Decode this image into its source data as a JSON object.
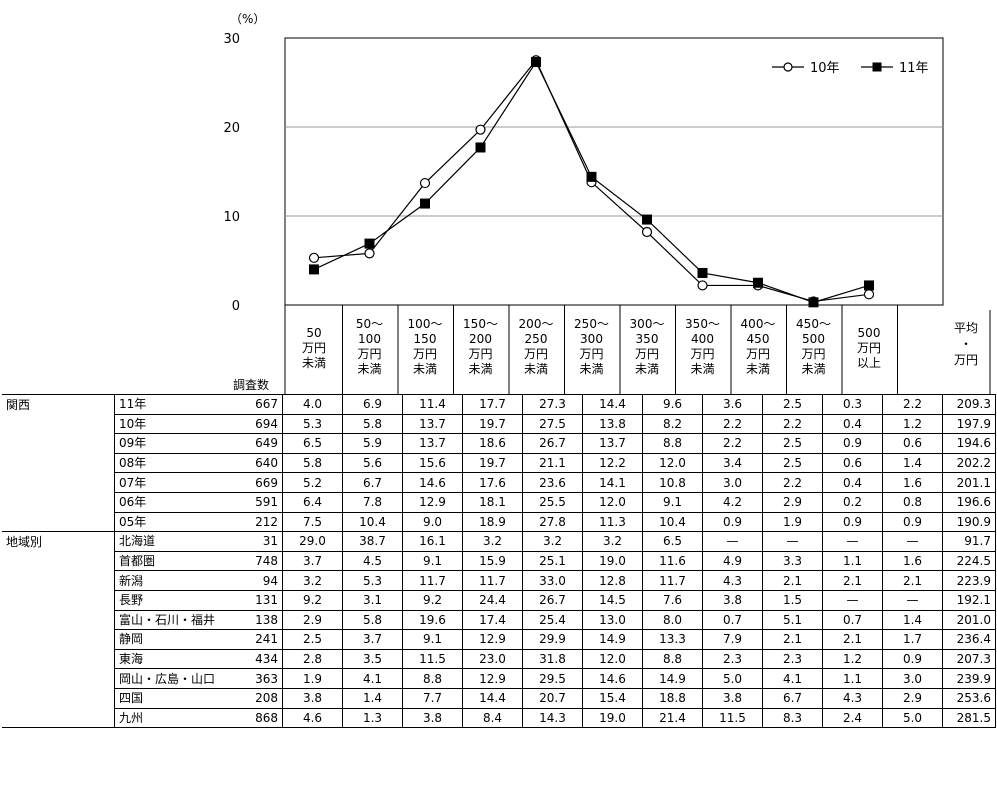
{
  "chart_data": {
    "type": "line",
    "ylabel": "（%）",
    "ylim": [
      0,
      30
    ],
    "yticks": [
      "0",
      "10",
      "20",
      "30"
    ],
    "grid": true,
    "legend_position": "top-right",
    "categories": [
      [
        "50",
        "万円",
        "未満"
      ],
      [
        "50～",
        "100",
        "万円",
        "未満"
      ],
      [
        "100～",
        "150",
        "万円",
        "未満"
      ],
      [
        "150～",
        "200",
        "万円",
        "未満"
      ],
      [
        "200～",
        "250",
        "万円",
        "未満"
      ],
      [
        "250～",
        "300",
        "万円",
        "未満"
      ],
      [
        "300～",
        "350",
        "万円",
        "未満"
      ],
      [
        "350～",
        "400",
        "万円",
        "未満"
      ],
      [
        "400～",
        "450",
        "万円",
        "未満"
      ],
      [
        "450～",
        "500",
        "万円",
        "未満"
      ],
      [
        "500",
        "万円",
        "以上"
      ]
    ],
    "series": [
      {
        "name": "10年",
        "marker": "circle-open",
        "values": [
          5.3,
          5.8,
          13.7,
          19.7,
          27.5,
          13.8,
          8.2,
          2.2,
          2.2,
          0.4,
          1.2
        ]
      },
      {
        "name": "11年",
        "marker": "square-filled",
        "values": [
          4.0,
          6.9,
          11.4,
          17.7,
          27.3,
          14.4,
          9.6,
          3.6,
          2.5,
          0.3,
          2.2
        ]
      }
    ]
  },
  "table": {
    "count_header": "調査数",
    "avg_header": [
      "平均",
      "・",
      "万円"
    ],
    "groups": [
      {
        "name": "関西",
        "rows": [
          {
            "label": "11年",
            "count": "667",
            "values": [
              "4.0",
              "6.9",
              "11.4",
              "17.7",
              "27.3",
              "14.4",
              "9.6",
              "3.6",
              "2.5",
              "0.3",
              "2.2"
            ],
            "avg": "209.3"
          },
          {
            "label": "10年",
            "count": "694",
            "values": [
              "5.3",
              "5.8",
              "13.7",
              "19.7",
              "27.5",
              "13.8",
              "8.2",
              "2.2",
              "2.2",
              "0.4",
              "1.2"
            ],
            "avg": "197.9"
          },
          {
            "label": "09年",
            "count": "649",
            "values": [
              "6.5",
              "5.9",
              "13.7",
              "18.6",
              "26.7",
              "13.7",
              "8.8",
              "2.2",
              "2.5",
              "0.9",
              "0.6"
            ],
            "avg": "194.6"
          },
          {
            "label": "08年",
            "count": "640",
            "values": [
              "5.8",
              "5.6",
              "15.6",
              "19.7",
              "21.1",
              "12.2",
              "12.0",
              "3.4",
              "2.5",
              "0.6",
              "1.4"
            ],
            "avg": "202.2"
          },
          {
            "label": "07年",
            "count": "669",
            "values": [
              "5.2",
              "6.7",
              "14.6",
              "17.6",
              "23.6",
              "14.1",
              "10.8",
              "3.0",
              "2.2",
              "0.4",
              "1.6"
            ],
            "avg": "201.1"
          },
          {
            "label": "06年",
            "count": "591",
            "values": [
              "6.4",
              "7.8",
              "12.9",
              "18.1",
              "25.5",
              "12.0",
              "9.1",
              "4.2",
              "2.9",
              "0.2",
              "0.8"
            ],
            "avg": "196.6"
          },
          {
            "label": "05年",
            "count": "212",
            "values": [
              "7.5",
              "10.4",
              "9.0",
              "18.9",
              "27.8",
              "11.3",
              "10.4",
              "0.9",
              "1.9",
              "0.9",
              "0.9"
            ],
            "avg": "190.9"
          }
        ]
      },
      {
        "name": "地域別",
        "rows": [
          {
            "label": "北海道",
            "count": "31",
            "values": [
              "29.0",
              "38.7",
              "16.1",
              "3.2",
              "3.2",
              "3.2",
              "6.5",
              "—",
              "—",
              "—",
              "—"
            ],
            "avg": "91.7"
          },
          {
            "label": "首都圏",
            "count": "748",
            "values": [
              "3.7",
              "4.5",
              "9.1",
              "15.9",
              "25.1",
              "19.0",
              "11.6",
              "4.9",
              "3.3",
              "1.1",
              "1.6"
            ],
            "avg": "224.5"
          },
          {
            "label": "新潟",
            "count": "94",
            "values": [
              "3.2",
              "5.3",
              "11.7",
              "11.7",
              "33.0",
              "12.8",
              "11.7",
              "4.3",
              "2.1",
              "2.1",
              "2.1"
            ],
            "avg": "223.9"
          },
          {
            "label": "長野",
            "count": "131",
            "values": [
              "9.2",
              "3.1",
              "9.2",
              "24.4",
              "26.7",
              "14.5",
              "7.6",
              "3.8",
              "1.5",
              "—",
              "—"
            ],
            "avg": "192.1"
          },
          {
            "label": "富山・石川・福井",
            "count": "138",
            "values": [
              "2.9",
              "5.8",
              "19.6",
              "17.4",
              "25.4",
              "13.0",
              "8.0",
              "0.7",
              "5.1",
              "0.7",
              "1.4"
            ],
            "avg": "201.0"
          },
          {
            "label": "静岡",
            "count": "241",
            "values": [
              "2.5",
              "3.7",
              "9.1",
              "12.9",
              "29.9",
              "14.9",
              "13.3",
              "7.9",
              "2.1",
              "2.1",
              "1.7"
            ],
            "avg": "236.4"
          },
          {
            "label": "東海",
            "count": "434",
            "values": [
              "2.8",
              "3.5",
              "11.5",
              "23.0",
              "31.8",
              "12.0",
              "8.8",
              "2.3",
              "2.3",
              "1.2",
              "0.9"
            ],
            "avg": "207.3"
          },
          {
            "label": "岡山・広島・山口",
            "count": "363",
            "values": [
              "1.9",
              "4.1",
              "8.8",
              "12.9",
              "29.5",
              "14.6",
              "14.9",
              "5.0",
              "4.1",
              "1.1",
              "3.0"
            ],
            "avg": "239.9"
          },
          {
            "label": "四国",
            "count": "208",
            "values": [
              "3.8",
              "1.4",
              "7.7",
              "14.4",
              "20.7",
              "15.4",
              "18.8",
              "3.8",
              "6.7",
              "4.3",
              "2.9"
            ],
            "avg": "253.6"
          },
          {
            "label": "九州",
            "count": "868",
            "values": [
              "4.6",
              "1.3",
              "3.8",
              "8.4",
              "14.3",
              "19.0",
              "21.4",
              "11.5",
              "8.3",
              "2.4",
              "5.0"
            ],
            "avg": "281.5"
          }
        ]
      }
    ]
  }
}
